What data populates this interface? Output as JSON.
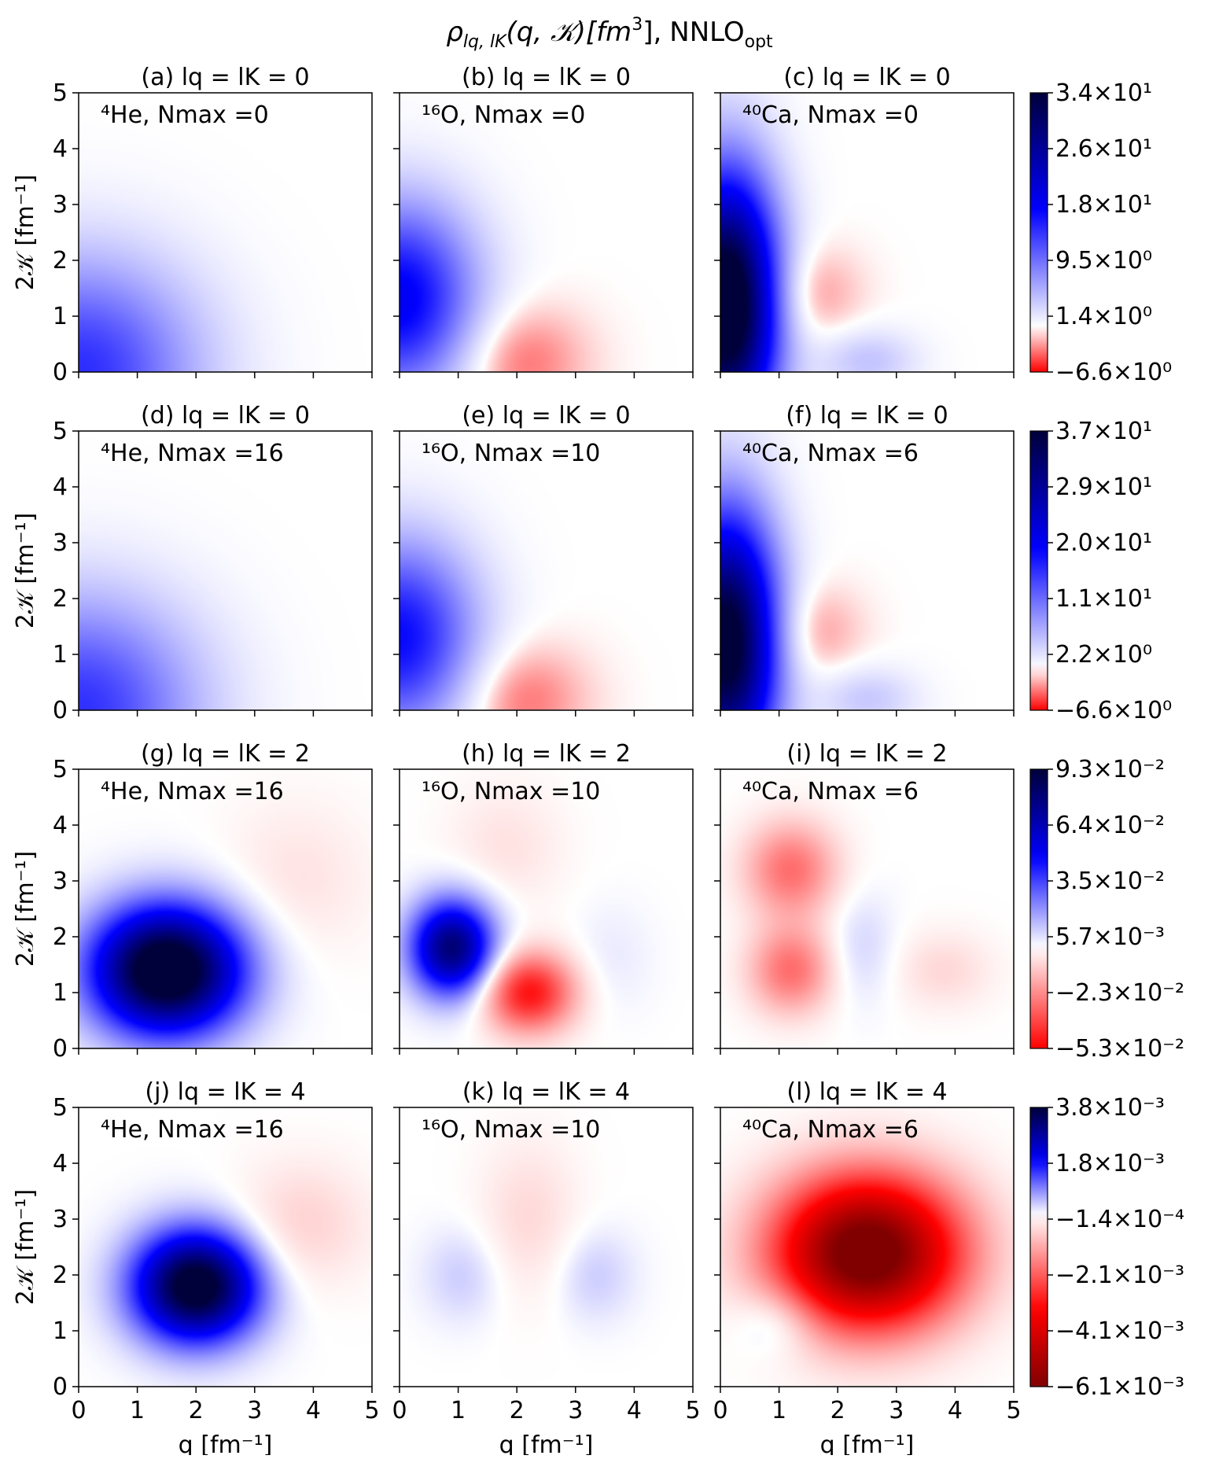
{
  "title": "ρ_{l_q,l_K}(q, 𝒦)[fm³], NNLO_opt",
  "title_parts": {
    "rho": "ρ",
    "rho_sub": "lq, lK",
    "args": "(q, 𝒦)[fm",
    "sup": "3",
    "close": "],",
    "nnlo": "NNLO",
    "nnlo_sub": "opt"
  },
  "xlabel": "q [fm⁻¹]",
  "ylabel": "2𝒦 [fm⁻¹]",
  "x_ticks": [
    "0",
    "1",
    "2",
    "3",
    "4",
    "5"
  ],
  "y_ticks": [
    "0",
    "1",
    "2",
    "3",
    "4",
    "5"
  ],
  "colors": {
    "max_blue": "#00003a",
    "blue": "#0000ff",
    "white": "#ffffff",
    "red": "#ff0000",
    "max_red": "#800000"
  },
  "chart_data": {
    "type": "heatmap",
    "xlim": [
      0,
      5
    ],
    "ylim": [
      0,
      5
    ],
    "rows": [
      {
        "colorbar": {
          "ticks": [
            "3.4×10¹",
            "2.6×10¹",
            "1.8×10¹",
            "9.5×10⁰",
            "1.4×10⁰",
            "−6.6×10⁰"
          ],
          "vmax": 34,
          "vmin": -6.6,
          "stops": "blue-white-red"
        },
        "panels": [
          {
            "title": "(a) lq = lK = 0",
            "annotation": "⁴He, Nmax =0",
            "blobs": [
              {
                "x": 0.0,
                "y": 0.0,
                "sx": 1.4,
                "sy": 1.4,
                "a": 14
              }
            ]
          },
          {
            "title": "(b) lq = lK = 0",
            "annotation": "¹⁶O, Nmax =0",
            "blobs": [
              {
                "x": 0.0,
                "y": 1.3,
                "sx": 0.9,
                "sy": 1.2,
                "a": 18
              },
              {
                "x": 2.0,
                "y": 0.2,
                "sx": 0.8,
                "sy": 0.7,
                "a": -4
              }
            ]
          },
          {
            "title": "(c) lq = lK = 0",
            "annotation": "⁴⁰Ca, Nmax =0",
            "blobs": [
              {
                "x": 0.1,
                "y": 1.2,
                "sx": 0.6,
                "sy": 1.6,
                "a": 40
              },
              {
                "x": 1.5,
                "y": 1.4,
                "sx": 0.6,
                "sy": 0.6,
                "a": -3
              },
              {
                "x": 2.5,
                "y": 0.2,
                "sx": 0.6,
                "sy": 0.4,
                "a": 4
              }
            ]
          }
        ]
      },
      {
        "colorbar": {
          "ticks": [
            "3.7×10¹",
            "2.9×10¹",
            "2.0×10¹",
            "1.1×10¹",
            "2.2×10⁰",
            "−6.6×10⁰"
          ],
          "vmax": 37,
          "vmin": -6.6,
          "stops": "blue-white-red"
        },
        "panels": [
          {
            "title": "(d) lq = lK = 0",
            "annotation": "⁴He, Nmax =16",
            "blobs": [
              {
                "x": 0.0,
                "y": 0.0,
                "sx": 1.4,
                "sy": 1.4,
                "a": 15
              }
            ]
          },
          {
            "title": "(e) lq = lK = 0",
            "annotation": "¹⁶O, Nmax =10",
            "blobs": [
              {
                "x": 0.0,
                "y": 1.3,
                "sx": 0.9,
                "sy": 1.2,
                "a": 18
              },
              {
                "x": 2.0,
                "y": 0.2,
                "sx": 0.8,
                "sy": 0.7,
                "a": -4
              }
            ]
          },
          {
            "title": "(f) lq = lK = 0",
            "annotation": "⁴⁰Ca, Nmax =6",
            "blobs": [
              {
                "x": 0.1,
                "y": 1.2,
                "sx": 0.6,
                "sy": 1.6,
                "a": 40
              },
              {
                "x": 1.5,
                "y": 1.4,
                "sx": 0.6,
                "sy": 0.6,
                "a": -3
              },
              {
                "x": 2.5,
                "y": 0.2,
                "sx": 0.6,
                "sy": 0.4,
                "a": 4
              }
            ]
          }
        ]
      },
      {
        "colorbar": {
          "ticks": [
            "9.3×10⁻²",
            "6.4×10⁻²",
            "3.5×10⁻²",
            "5.7×10⁻³",
            "−2.3×10⁻²",
            "−5.3×10⁻²"
          ],
          "vmax": 0.093,
          "vmin": -0.053,
          "stops": "blue-white-red"
        },
        "panels": [
          {
            "title": "(g) lq = lK = 2",
            "annotation": "⁴He, Nmax =16",
            "blobs": [
              {
                "x": 1.5,
                "y": 1.4,
                "sx": 0.9,
                "sy": 0.8,
                "a": 0.11
              },
              {
                "x": 3.7,
                "y": 3.0,
                "sx": 0.9,
                "sy": 1.0,
                "a": -0.006
              }
            ]
          },
          {
            "title": "(h) lq = lK = 2",
            "annotation": "¹⁶O, Nmax =10",
            "blobs": [
              {
                "x": 0.9,
                "y": 1.8,
                "sx": 0.5,
                "sy": 0.6,
                "a": 0.08
              },
              {
                "x": 2.2,
                "y": 1.0,
                "sx": 0.55,
                "sy": 0.5,
                "a": -0.05
              },
              {
                "x": 1.8,
                "y": 3.6,
                "sx": 0.7,
                "sy": 0.8,
                "a": -0.006
              },
              {
                "x": 3.6,
                "y": 1.6,
                "sx": 0.5,
                "sy": 0.7,
                "a": 0.004
              }
            ]
          },
          {
            "title": "(i) lq = lK = 2",
            "annotation": "⁴⁰Ca, Nmax =6",
            "blobs": [
              {
                "x": 1.2,
                "y": 3.2,
                "sx": 0.55,
                "sy": 0.6,
                "a": -0.03
              },
              {
                "x": 1.2,
                "y": 1.4,
                "sx": 0.5,
                "sy": 0.55,
                "a": -0.03
              },
              {
                "x": 2.4,
                "y": 1.8,
                "sx": 0.4,
                "sy": 0.7,
                "a": 0.008
              },
              {
                "x": 3.8,
                "y": 1.4,
                "sx": 0.6,
                "sy": 0.5,
                "a": -0.008
              }
            ]
          }
        ]
      },
      {
        "colorbar": {
          "ticks": [
            "3.8×10⁻³",
            "1.8×10⁻³",
            "−1.4×10⁻⁴",
            "−2.1×10⁻³",
            "−4.1×10⁻³",
            "−6.1×10⁻³"
          ],
          "vmax": 0.0038,
          "vmin": -0.0061,
          "stops": "blue-white-red-darkred"
        },
        "panels": [
          {
            "title": "(j) lq = lK = 4",
            "annotation": "⁴He, Nmax =16",
            "blobs": [
              {
                "x": 2.0,
                "y": 1.8,
                "sx": 0.75,
                "sy": 0.7,
                "a": 0.0042
              },
              {
                "x": 3.8,
                "y": 2.9,
                "sx": 0.8,
                "sy": 0.8,
                "a": -0.0006
              }
            ]
          },
          {
            "title": "(k) lq = lK = 4",
            "annotation": "¹⁶O, Nmax =10",
            "blobs": [
              {
                "x": 1.1,
                "y": 2.0,
                "sx": 0.5,
                "sy": 0.6,
                "a": 0.0004
              },
              {
                "x": 3.3,
                "y": 2.0,
                "sx": 0.5,
                "sy": 0.6,
                "a": 0.0004
              },
              {
                "x": 2.2,
                "y": 3.0,
                "sx": 0.6,
                "sy": 1.0,
                "a": -0.0005
              }
            ]
          },
          {
            "title": "(l) lq = lK = 4",
            "annotation": "⁴⁰Ca, Nmax =6",
            "blobs": [
              {
                "x": 2.5,
                "y": 2.4,
                "sx": 1.1,
                "sy": 0.95,
                "a": -0.0068
              },
              {
                "x": 1.0,
                "y": 1.2,
                "sx": 0.5,
                "sy": 0.45,
                "a": 0.0008
              }
            ]
          }
        ]
      }
    ]
  }
}
